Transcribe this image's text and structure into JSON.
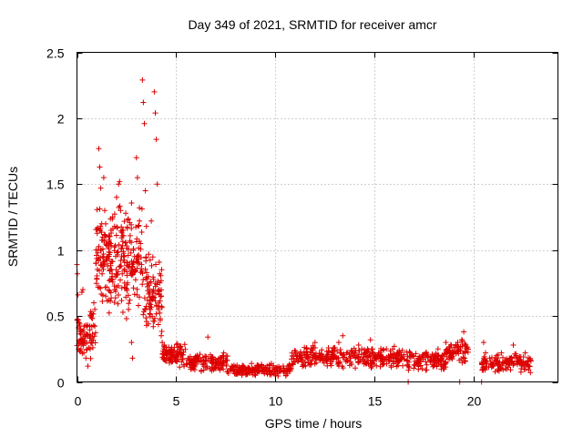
{
  "chart_data": {
    "type": "scatter",
    "title": "Day 349 of 2021, SRMTID for receiver amcr",
    "xlabel": "GPS time / hours",
    "ylabel": "SRMTID / TECUs",
    "xlim": [
      0,
      24.25
    ],
    "ylim": [
      0,
      2.5
    ],
    "x_ticks": [
      0,
      5,
      10,
      15,
      20
    ],
    "x_tick_labels": [
      "0",
      "5",
      "10",
      "15",
      "20"
    ],
    "y_ticks": [
      0,
      0.5,
      1,
      1.5,
      2,
      2.5
    ],
    "y_tick_labels": [
      "0",
      "0.5",
      "1",
      "1.5",
      "2",
      "2.5"
    ],
    "grid": true,
    "marker": "+",
    "series_color": "#dd0000",
    "series": [
      {
        "name": "SRMTID",
        "points": [
          [
            0.0,
            0.89
          ],
          [
            0.02,
            0.82
          ],
          [
            0.05,
            0.66
          ],
          [
            0.1,
            0.45
          ],
          [
            0.15,
            0.3
          ],
          [
            0.2,
            0.25
          ],
          [
            0.25,
            0.68
          ],
          [
            0.3,
            0.7
          ],
          [
            0.35,
            0.22
          ],
          [
            0.4,
            0.35
          ],
          [
            0.45,
            0.18
          ],
          [
            0.5,
            0.3
          ],
          [
            0.55,
            0.12
          ],
          [
            0.6,
            0.26
          ],
          [
            0.65,
            0.35
          ],
          [
            0.7,
            0.5
          ],
          [
            0.75,
            0.42
          ],
          [
            0.8,
            0.26
          ],
          [
            0.85,
            0.6
          ],
          [
            0.9,
            0.55
          ],
          [
            0.95,
            0.9
          ],
          [
            1.0,
            0.78
          ],
          [
            1.05,
            1.0
          ],
          [
            1.1,
            1.77
          ],
          [
            1.15,
            1.63
          ],
          [
            1.2,
            1.47
          ],
          [
            1.25,
            1.2
          ],
          [
            1.3,
            0.95
          ],
          [
            1.35,
            1.55
          ],
          [
            1.4,
            1.3
          ],
          [
            1.45,
            1.1
          ],
          [
            1.5,
            0.72
          ],
          [
            1.55,
            0.88
          ],
          [
            1.6,
            0.62
          ],
          [
            1.7,
            1.05
          ],
          [
            1.8,
            1.25
          ],
          [
            1.9,
            0.7
          ],
          [
            2.0,
            1.4
          ],
          [
            2.1,
            1.5
          ],
          [
            2.15,
            1.52
          ],
          [
            2.2,
            1.3
          ],
          [
            2.25,
            0.95
          ],
          [
            2.3,
            1.15
          ],
          [
            2.4,
            0.75
          ],
          [
            2.5,
            0.48
          ],
          [
            2.6,
            0.55
          ],
          [
            2.7,
            0.82
          ],
          [
            2.75,
            0.3
          ],
          [
            2.8,
            0.18
          ],
          [
            2.85,
            1.0
          ],
          [
            2.9,
            0.95
          ],
          [
            3.0,
            1.7
          ],
          [
            3.05,
            1.55
          ],
          [
            3.1,
            0.58
          ],
          [
            3.15,
            1.22
          ],
          [
            3.2,
            1.05
          ],
          [
            3.3,
            2.29
          ],
          [
            3.35,
            2.12
          ],
          [
            3.4,
            1.96
          ],
          [
            3.45,
            1.45
          ],
          [
            3.5,
            1.18
          ],
          [
            3.55,
            0.62
          ],
          [
            3.6,
            0.8
          ],
          [
            3.65,
            0.75
          ],
          [
            3.7,
            0.55
          ],
          [
            3.75,
            1.22
          ],
          [
            3.8,
            0.68
          ],
          [
            3.85,
            0.42
          ],
          [
            3.9,
            2.2
          ],
          [
            3.95,
            2.04
          ],
          [
            4.0,
            1.84
          ],
          [
            4.05,
            1.5
          ],
          [
            4.1,
            0.55
          ],
          [
            4.15,
            0.7
          ],
          [
            4.2,
            0.48
          ],
          [
            4.25,
            0.35
          ],
          [
            4.3,
            0.3
          ],
          [
            4.4,
            0.28
          ],
          [
            4.5,
            0.22
          ],
          [
            4.6,
            0.18
          ],
          [
            4.8,
            0.2
          ],
          [
            5.0,
            0.16
          ],
          [
            5.2,
            0.22
          ],
          [
            5.4,
            0.12
          ],
          [
            5.6,
            0.18
          ],
          [
            5.8,
            0.1
          ],
          [
            6.0,
            0.17
          ],
          [
            6.2,
            0.21
          ],
          [
            6.4,
            0.12
          ],
          [
            6.6,
            0.34
          ],
          [
            6.8,
            0.18
          ],
          [
            7.0,
            0.1
          ],
          [
            7.2,
            0.14
          ],
          [
            7.4,
            0.22
          ],
          [
            7.6,
            0.08
          ],
          [
            7.8,
            0.12
          ],
          [
            8.0,
            0.06
          ],
          [
            8.2,
            0.09
          ],
          [
            8.4,
            0.12
          ],
          [
            8.6,
            0.06
          ],
          [
            8.8,
            0.14
          ],
          [
            9.0,
            0.05
          ],
          [
            9.2,
            0.08
          ],
          [
            9.4,
            0.11
          ],
          [
            9.6,
            0.06
          ],
          [
            9.8,
            0.14
          ],
          [
            10.0,
            0.1
          ],
          [
            10.2,
            0.08
          ],
          [
            10.4,
            0.12
          ],
          [
            10.6,
            0.06
          ],
          [
            10.8,
            0.1
          ],
          [
            11.0,
            0.15
          ],
          [
            11.2,
            0.2
          ],
          [
            11.4,
            0.13
          ],
          [
            11.6,
            0.18
          ],
          [
            11.8,
            0.25
          ],
          [
            12.0,
            0.3
          ],
          [
            12.2,
            0.2
          ],
          [
            12.4,
            0.16
          ],
          [
            12.6,
            0.23
          ],
          [
            12.8,
            0.18
          ],
          [
            13.0,
            0.26
          ],
          [
            13.2,
            0.3
          ],
          [
            13.4,
            0.35
          ],
          [
            13.6,
            0.22
          ],
          [
            13.8,
            0.15
          ],
          [
            14.0,
            0.2
          ],
          [
            14.2,
            0.28
          ],
          [
            14.4,
            0.17
          ],
          [
            14.6,
            0.23
          ],
          [
            14.8,
            0.32
          ],
          [
            15.0,
            0.18
          ],
          [
            15.2,
            0.22
          ],
          [
            15.4,
            0.15
          ],
          [
            15.6,
            0.25
          ],
          [
            15.8,
            0.2
          ],
          [
            16.0,
            0.27
          ],
          [
            16.2,
            0.15
          ],
          [
            16.4,
            0.18
          ],
          [
            16.7,
            0.0
          ],
          [
            16.8,
            0.22
          ],
          [
            17.0,
            0.13
          ],
          [
            17.2,
            0.18
          ],
          [
            17.4,
            0.1
          ],
          [
            17.6,
            0.22
          ],
          [
            17.8,
            0.16
          ],
          [
            18.0,
            0.2
          ],
          [
            18.2,
            0.25
          ],
          [
            18.4,
            0.18
          ],
          [
            18.6,
            0.3
          ],
          [
            18.8,
            0.22
          ],
          [
            19.0,
            0.26
          ],
          [
            19.2,
            0.3
          ],
          [
            19.3,
            0.0
          ],
          [
            19.4,
            0.32
          ],
          [
            19.5,
            0.38
          ],
          [
            19.6,
            0.28
          ],
          [
            20.4,
            0.0
          ],
          [
            20.5,
            0.3
          ],
          [
            20.6,
            0.22
          ],
          [
            20.8,
            0.18
          ],
          [
            21.0,
            0.12
          ],
          [
            21.2,
            0.16
          ],
          [
            21.4,
            0.22
          ],
          [
            21.6,
            0.1
          ],
          [
            21.8,
            0.18
          ],
          [
            22.0,
            0.28
          ],
          [
            22.2,
            0.14
          ],
          [
            22.4,
            0.1
          ],
          [
            22.6,
            0.22
          ],
          [
            22.8,
            0.12
          ]
        ]
      }
    ],
    "density_bands": [
      {
        "x_start": 0.0,
        "x_end": 0.95,
        "low": 0.12,
        "high": 0.55,
        "n": 70
      },
      {
        "x_start": 0.95,
        "x_end": 2.0,
        "low": 0.5,
        "high": 1.35,
        "n": 120
      },
      {
        "x_start": 2.0,
        "x_end": 3.3,
        "low": 0.5,
        "high": 1.4,
        "n": 130
      },
      {
        "x_start": 3.3,
        "x_end": 4.3,
        "low": 0.35,
        "high": 1.0,
        "n": 90
      },
      {
        "x_start": 4.3,
        "x_end": 5.5,
        "low": 0.1,
        "high": 0.3,
        "n": 90
      },
      {
        "x_start": 5.5,
        "x_end": 7.6,
        "low": 0.07,
        "high": 0.22,
        "n": 130
      },
      {
        "x_start": 7.6,
        "x_end": 10.8,
        "low": 0.04,
        "high": 0.14,
        "n": 170
      },
      {
        "x_start": 10.8,
        "x_end": 13.6,
        "low": 0.1,
        "high": 0.28,
        "n": 160
      },
      {
        "x_start": 13.6,
        "x_end": 16.5,
        "low": 0.1,
        "high": 0.27,
        "n": 160
      },
      {
        "x_start": 16.6,
        "x_end": 18.6,
        "low": 0.08,
        "high": 0.24,
        "n": 110
      },
      {
        "x_start": 18.6,
        "x_end": 19.75,
        "low": 0.14,
        "high": 0.32,
        "n": 70
      },
      {
        "x_start": 20.4,
        "x_end": 22.9,
        "low": 0.07,
        "high": 0.22,
        "n": 130
      }
    ]
  }
}
